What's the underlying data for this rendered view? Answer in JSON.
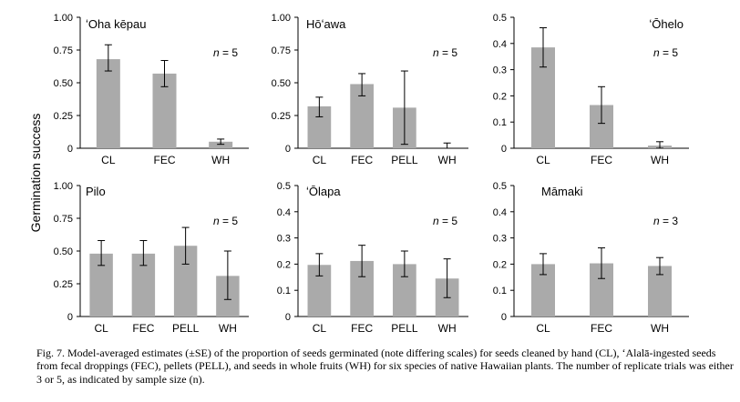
{
  "y_axis_title": "Germination success",
  "caption": "Fig. 7.  Model-averaged estimates (±SE) of the proportion of seeds germinated (note differing scales) for seeds cleaned by hand (CL), ‘Alalā-ingested seeds from fecal droppings (FEC), pellets (PELL), and seeds in whole fruits (WH) for six species of native Hawaiian plants. The number of replicate trials was either 3 or 5, as indicated by sample size (n).",
  "colors": {
    "bar": "#aaaaaa",
    "axis": "#000000",
    "error_bar": "#000000"
  },
  "chart_data": [
    {
      "type": "bar",
      "title": "ʻOha kēpau",
      "n_label": "n = 5",
      "categories": [
        "CL",
        "FEC",
        "WH"
      ],
      "values": [
        0.68,
        0.57,
        0.05
      ],
      "error_low": [
        0.59,
        0.47,
        0.03
      ],
      "error_high": [
        0.79,
        0.67,
        0.07
      ],
      "ylim": [
        0,
        1.0
      ],
      "yticks": [
        "0",
        "0.25",
        "0.50",
        "0.75",
        "1.00"
      ]
    },
    {
      "type": "bar",
      "title": "Hōʻawa",
      "n_label": "n = 5",
      "categories": [
        "CL",
        "FEC",
        "PELL",
        "WH"
      ],
      "values": [
        0.32,
        0.49,
        0.31,
        0.0
      ],
      "error_low": [
        0.24,
        0.4,
        0.03,
        0.0
      ],
      "error_high": [
        0.39,
        0.57,
        0.59,
        0.04
      ],
      "ylim": [
        0,
        1.0
      ],
      "yticks": [
        "0",
        "0.25",
        "0.50",
        "0.75",
        "1.00"
      ]
    },
    {
      "type": "bar",
      "title": "ʻŌhelo",
      "n_label": "n = 5",
      "categories": [
        "CL",
        "FEC",
        "WH"
      ],
      "values": [
        0.385,
        0.165,
        0.01
      ],
      "error_low": [
        0.31,
        0.095,
        0.0
      ],
      "error_high": [
        0.46,
        0.235,
        0.025
      ],
      "ylim": [
        0,
        0.5
      ],
      "yticks": [
        "0",
        "0.1",
        "0.2",
        "0.3",
        "0.4",
        "0.5"
      ]
    },
    {
      "type": "bar",
      "title": "Pilo",
      "n_label": "n = 5",
      "categories": [
        "CL",
        "FEC",
        "PELL",
        "WH"
      ],
      "values": [
        0.48,
        0.48,
        0.54,
        0.31
      ],
      "error_low": [
        0.39,
        0.39,
        0.4,
        0.13
      ],
      "error_high": [
        0.58,
        0.58,
        0.68,
        0.5
      ],
      "ylim": [
        0,
        1.0
      ],
      "yticks": [
        "0",
        "0.25",
        "0.50",
        "0.75",
        "1.00"
      ]
    },
    {
      "type": "bar",
      "title": "ʻŌlapa",
      "n_label": "n = 5",
      "categories": [
        "CL",
        "FEC",
        "PELL",
        "WH"
      ],
      "values": [
        0.197,
        0.212,
        0.2,
        0.145
      ],
      "error_low": [
        0.155,
        0.152,
        0.152,
        0.072
      ],
      "error_high": [
        0.24,
        0.272,
        0.25,
        0.22
      ],
      "ylim": [
        0,
        0.5
      ],
      "yticks": [
        "0",
        "0.1",
        "0.2",
        "0.3",
        "0.4",
        "0.5"
      ]
    },
    {
      "type": "bar",
      "title": "Māmaki",
      "n_label": "n = 3",
      "categories": [
        "CL",
        "FEC",
        "WH"
      ],
      "values": [
        0.2,
        0.203,
        0.193
      ],
      "error_low": [
        0.16,
        0.145,
        0.16
      ],
      "error_high": [
        0.24,
        0.262,
        0.225
      ],
      "ylim": [
        0,
        0.5
      ],
      "yticks": [
        "0",
        "0.1",
        "0.2",
        "0.3",
        "0.4",
        "0.5"
      ]
    }
  ]
}
